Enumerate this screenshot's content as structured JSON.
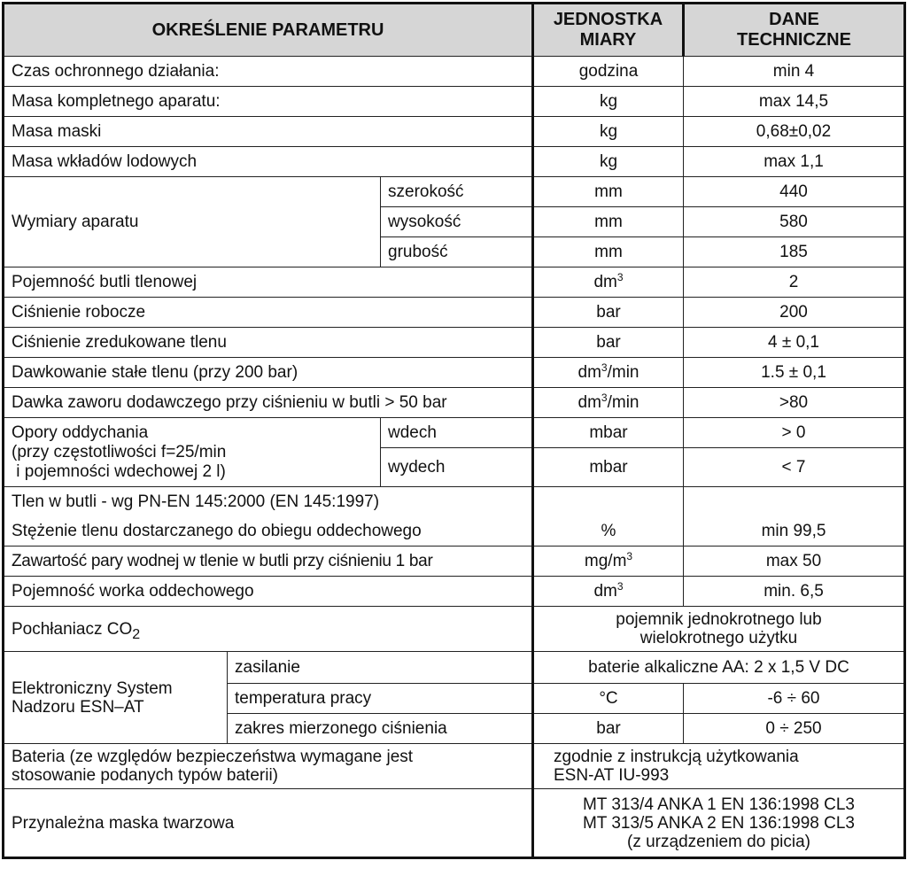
{
  "header": {
    "param": "OKREŚLENIE PARAMETRU",
    "unit": "JEDNOSTKA MIARY",
    "value": "DANE TECHNICZNE"
  },
  "rows": {
    "czas": {
      "label": "Czas ochronnego działania:",
      "unit": "godzina",
      "value": "min 4"
    },
    "masa_aparatu": {
      "label": "Masa kompletnego aparatu:",
      "unit": "kg",
      "value": "max 14,5"
    },
    "masa_maski": {
      "label": "Masa maski",
      "unit": "kg",
      "value": "0,68±0,02"
    },
    "masa_wkladow": {
      "label": "Masa wkładów lodowych",
      "unit": "kg",
      "value": "max 1,1"
    },
    "wymiary": {
      "label": "Wymiary aparatu",
      "sub": [
        {
          "label": "szerokość",
          "unit": "mm",
          "value": "440"
        },
        {
          "label": "wysokość",
          "unit": "mm",
          "value": "580"
        },
        {
          "label": "grubość",
          "unit": "mm",
          "value": "185"
        }
      ]
    },
    "pojemnosc_butli": {
      "label": "Pojemność butli tlenowej",
      "unit": "dm",
      "unit_sup": "3",
      "value": "2"
    },
    "cisnienie_robocze": {
      "label": "Ciśnienie robocze",
      "unit": "bar",
      "value": "200"
    },
    "cisnienie_zred": {
      "label": "Ciśnienie zredukowane tlenu",
      "unit": "bar",
      "value": "4 ± 0,1"
    },
    "dawkowanie": {
      "label": "Dawkowanie stałe tlenu (przy 200 bar)",
      "unit": "dm",
      "unit_sup": "3",
      "unit_rest": "/min",
      "value": "1.5 ± 0,1"
    },
    "dawka_zaworu": {
      "label": "Dawka zaworu dodawczego przy ciśnieniu w butli > 50 bar",
      "unit": "dm",
      "unit_sup": "3",
      "unit_rest": "/min",
      "value": ">80"
    },
    "opory": {
      "label_lines": [
        "Opory oddychania",
        "(przy częstotliwości f=25/min",
        " i pojemności wdechowej 2 l)"
      ],
      "sub": [
        {
          "label": "wdech",
          "unit": "mbar",
          "value": "> 0"
        },
        {
          "label": "wydech",
          "unit": "mbar",
          "value": "< 7"
        }
      ]
    },
    "tlen": {
      "label": "Tlen w butli - wg PN-EN 145:2000 (EN 145:1997)"
    },
    "stezenie": {
      "label": "Stężenie tlenu dostarczanego do obiegu oddechowego",
      "unit": "%",
      "value": "min 99,5"
    },
    "zawartosc": {
      "label": "Zawartość pary wodnej w tlenie w butli przy ciśnieniu 1 bar",
      "unit": "mg/m",
      "unit_sup": "3",
      "value": "max 50"
    },
    "worek": {
      "label": "Pojemność worka oddechowego",
      "unit": "dm",
      "unit_sup": "3",
      "value": "min. 6,5"
    },
    "pochlaniacz": {
      "label": "Pochłaniacz CO",
      "label_sub": "2",
      "value_lines": [
        "pojemnik jednokrotnego lub",
        "wielokrotnego użytku"
      ]
    },
    "esn": {
      "label_lines": [
        "Elektroniczny System",
        "Nadzoru ESN–AT"
      ],
      "zasilanie": {
        "label": "zasilanie",
        "value": "baterie alkaliczne AA:  2 x 1,5 V DC"
      },
      "temperatura": {
        "label": "temperatura pracy",
        "unit": "°C",
        "value": "-6 ÷ 60"
      },
      "zakres": {
        "label": "zakres mierzonego ciśnienia",
        "unit": "bar",
        "value": "0 ÷ 250"
      }
    },
    "bateria": {
      "label_lines": [
        "Bateria (ze względów bezpieczeństwa wymagane jest",
        "stosowanie podanych typów baterii)"
      ],
      "value_lines": [
        "zgodnie z instrukcją użytkowania",
        "ESN-AT IU-993"
      ]
    },
    "maska": {
      "label": "Przynależna maska twarzowa",
      "value_lines": [
        "MT 313/4 ANKA 1 EN 136:1998 CL3",
        "MT 313/5 ANKA 2 EN 136:1998 CL3",
        "(z urządzeniem do picia)"
      ]
    }
  }
}
